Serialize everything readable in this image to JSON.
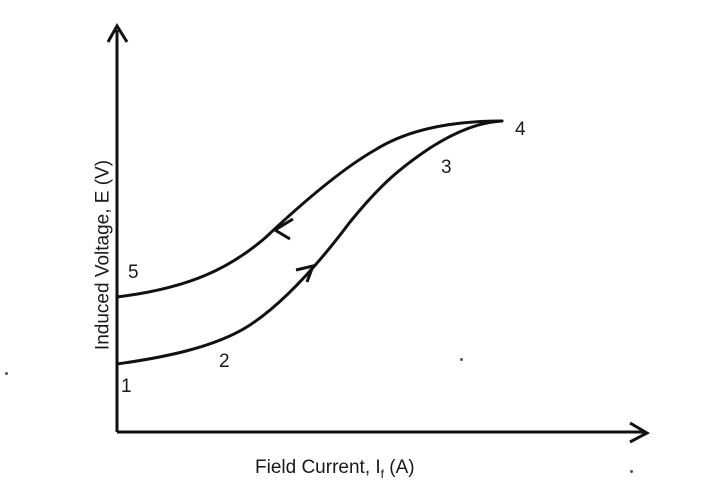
{
  "diagram": {
    "x_axis_label": "Field Current, I",
    "x_axis_subscript": "f",
    "x_axis_unit": " (A)",
    "y_axis_label": "Induced Voltage, E (V)",
    "points": {
      "p1": "1",
      "p2": "2",
      "p3": "3",
      "p4": "4",
      "p5": "5"
    },
    "curves": [
      {
        "name": "increasing-field-curve",
        "from": "1",
        "to": "4",
        "direction": "increasing"
      },
      {
        "name": "decreasing-field-curve",
        "from": "4",
        "to": "5",
        "direction": "decreasing"
      }
    ],
    "colors": {
      "ink": "#111111",
      "background": "#ffffff"
    }
  }
}
